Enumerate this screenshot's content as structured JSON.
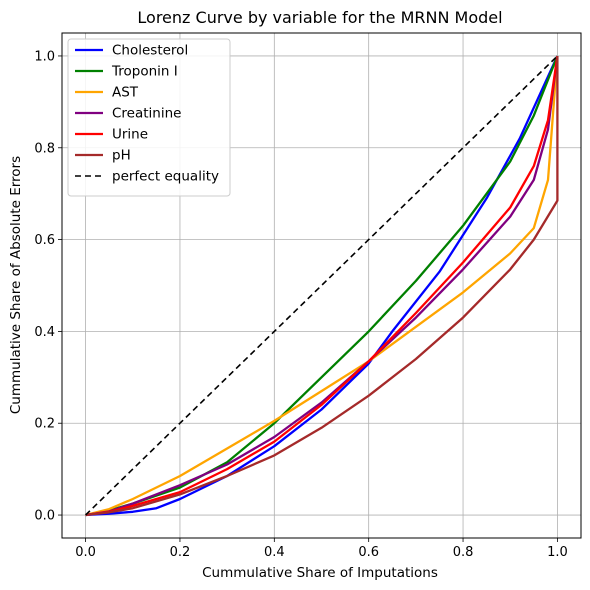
{
  "chart_data": {
    "type": "line",
    "title": "Lorenz Curve by variable for the MRNN Model",
    "xlabel": "Cummulative Share of Imputations",
    "ylabel": "Cummulative Share of Absolute Errors",
    "xlim": [
      -0.05,
      1.05
    ],
    "ylim": [
      -0.05,
      1.05
    ],
    "xticks": [
      "0.0",
      "0.2",
      "0.4",
      "0.6",
      "0.8",
      "1.0"
    ],
    "yticks": [
      "0.0",
      "0.2",
      "0.4",
      "0.6",
      "0.8",
      "1.0"
    ],
    "grid": true,
    "legend_position": "top-left",
    "series": [
      {
        "name": "Cholesterol",
        "color": "#0000ff",
        "dash": "solid",
        "x": [
          0,
          0.05,
          0.1,
          0.15,
          0.2,
          0.3,
          0.4,
          0.5,
          0.6,
          0.65,
          0.75,
          0.85,
          0.92,
          1.0
        ],
        "y": [
          0,
          0.003,
          0.007,
          0.015,
          0.035,
          0.085,
          0.15,
          0.23,
          0.33,
          0.4,
          0.53,
          0.69,
          0.82,
          1.0
        ]
      },
      {
        "name": "Troponin I",
        "color": "#008000",
        "dash": "solid",
        "x": [
          0,
          0.05,
          0.1,
          0.2,
          0.3,
          0.4,
          0.5,
          0.6,
          0.7,
          0.8,
          0.9,
          0.95,
          1.0
        ],
        "y": [
          0,
          0.01,
          0.025,
          0.06,
          0.115,
          0.2,
          0.3,
          0.4,
          0.51,
          0.63,
          0.77,
          0.87,
          1.0
        ]
      },
      {
        "name": "AST",
        "color": "#ffa500",
        "dash": "solid",
        "x": [
          0,
          0.05,
          0.1,
          0.2,
          0.3,
          0.4,
          0.5,
          0.6,
          0.7,
          0.8,
          0.9,
          0.95,
          0.98,
          1.0
        ],
        "y": [
          0,
          0.013,
          0.035,
          0.085,
          0.145,
          0.205,
          0.27,
          0.335,
          0.41,
          0.485,
          0.57,
          0.625,
          0.73,
          1.0
        ]
      },
      {
        "name": "Creatinine",
        "color": "#800080",
        "dash": "solid",
        "x": [
          0,
          0.05,
          0.1,
          0.2,
          0.3,
          0.4,
          0.5,
          0.6,
          0.7,
          0.8,
          0.9,
          0.95,
          0.98,
          1.0
        ],
        "y": [
          0,
          0.008,
          0.025,
          0.065,
          0.11,
          0.17,
          0.245,
          0.335,
          0.43,
          0.535,
          0.65,
          0.73,
          0.84,
          1.0
        ]
      },
      {
        "name": "Urine",
        "color": "#ff0000",
        "dash": "solid",
        "x": [
          0,
          0.05,
          0.1,
          0.2,
          0.3,
          0.4,
          0.5,
          0.6,
          0.7,
          0.8,
          0.9,
          0.95,
          0.98,
          1.0
        ],
        "y": [
          0,
          0.007,
          0.02,
          0.05,
          0.1,
          0.16,
          0.24,
          0.335,
          0.44,
          0.55,
          0.67,
          0.76,
          0.86,
          1.0
        ]
      },
      {
        "name": "pH",
        "color": "#a52a2a",
        "dash": "solid",
        "x": [
          0,
          0.05,
          0.1,
          0.2,
          0.3,
          0.4,
          0.5,
          0.6,
          0.7,
          0.8,
          0.9,
          0.95,
          1.0,
          1.0
        ],
        "y": [
          0,
          0.006,
          0.015,
          0.045,
          0.085,
          0.13,
          0.19,
          0.26,
          0.34,
          0.43,
          0.535,
          0.6,
          0.685,
          1.0
        ]
      },
      {
        "name": "perfect equality",
        "color": "#000000",
        "dash": "dashed",
        "x": [
          0,
          1
        ],
        "y": [
          0,
          1
        ]
      }
    ]
  }
}
